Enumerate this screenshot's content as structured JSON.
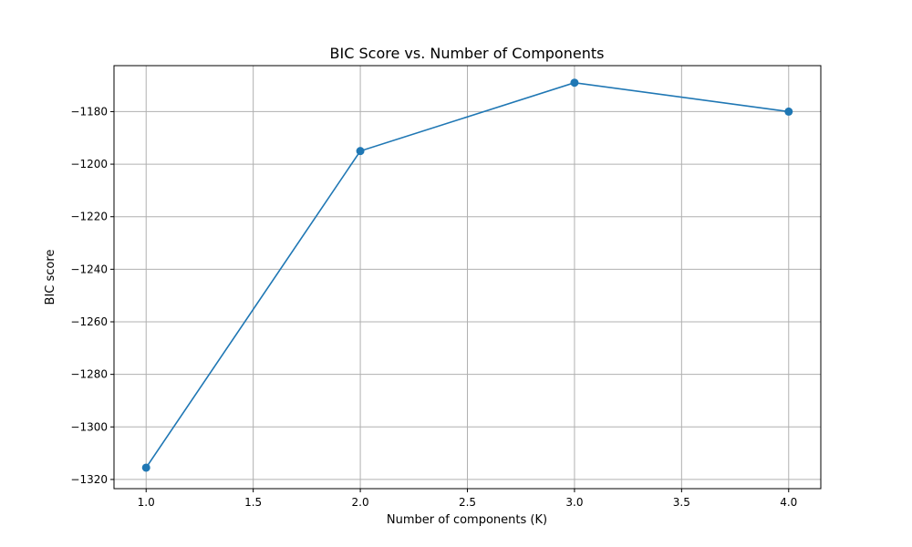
{
  "chart_data": {
    "type": "line",
    "title": "BIC Score vs. Number of Components",
    "xlabel": "Number of components (K)",
    "ylabel": "BIC score",
    "x": [
      1,
      2,
      3,
      4
    ],
    "series": [
      {
        "values": [
          -1315.5,
          -1195,
          -1169,
          -1180
        ],
        "color": "#1f77b4",
        "marker": "circle"
      }
    ],
    "xlim": [
      0.85,
      4.15
    ],
    "ylim": [
      -1323.5,
      -1162.5
    ],
    "xticks": [
      1.0,
      1.5,
      2.0,
      2.5,
      3.0,
      3.5,
      4.0
    ],
    "xtick_labels": [
      "1.0",
      "1.5",
      "2.0",
      "2.5",
      "3.0",
      "3.5",
      "4.0"
    ],
    "yticks": [
      -1320,
      -1300,
      -1280,
      -1260,
      -1240,
      -1220,
      -1200,
      -1180
    ],
    "ytick_labels": [
      "−1320",
      "−1300",
      "−1280",
      "−1260",
      "−1240",
      "−1220",
      "−1200",
      "−1180"
    ],
    "grid": true,
    "legend": null
  }
}
